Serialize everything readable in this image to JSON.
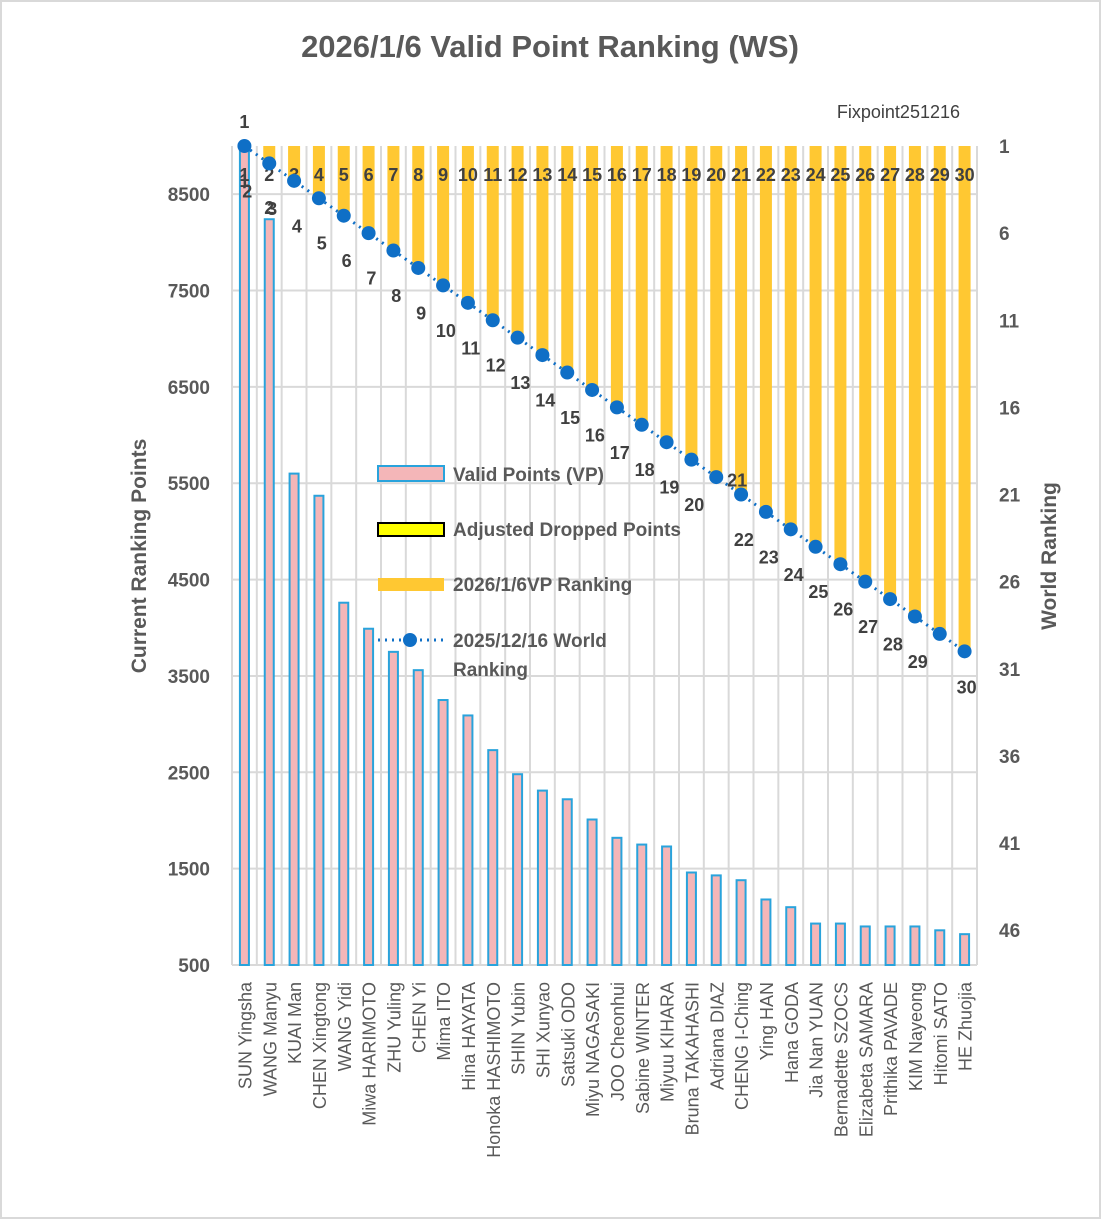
{
  "chart_data": {
    "type": "bar",
    "title": "2026/1/6  Valid Point Ranking (WS)",
    "subtitle": "Fixpoint251216",
    "ylabel": "Current Ranking Points",
    "y2label": "World Ranking",
    "ylim": [
      500,
      9000
    ],
    "yticks": [
      500,
      1500,
      2500,
      3500,
      4500,
      5500,
      6500,
      7500,
      8500
    ],
    "y2lim": [
      1,
      48
    ],
    "y2reversed": true,
    "y2ticks": [
      1,
      6,
      11,
      16,
      21,
      26,
      31,
      36,
      41,
      46
    ],
    "grid": true,
    "legend_position": "center-left",
    "categories": [
      "SUN Yingsha",
      "WANG Manyu",
      "KUAI Man",
      "CHEN Xingtong",
      "WANG Yidi",
      "Miwa HARIMOTO",
      "ZHU Yuling",
      "CHEN Yi",
      "Mima ITO",
      "Hina HAYATA",
      "Honoka HASHIMOTO",
      "SHIN Yubin",
      "SHI Xunyao",
      "Satsuki ODO",
      "Miyu NAGASAKI",
      "JOO Cheonhui",
      "Sabine WINTER",
      "Miyuu KIHARA",
      "Bruna TAKAHASHI",
      "Adriana DIAZ",
      "CHENG I-Ching",
      "Ying HAN",
      "Hana GODA",
      "Jia Nan YUAN",
      "Bernadette SZOCS",
      "Elizabeta SAMARA",
      "Prithika PAVADE",
      "KIM Nayeong",
      "Hitomi SATO",
      "HE Zhuojia"
    ],
    "series": [
      {
        "name": "Valid Points (VP)",
        "type": "bar",
        "axis": "left",
        "color": "#f4b6b8",
        "edge": "#29a3dc",
        "values": [
          9000,
          8240,
          5600,
          5370,
          4260,
          3990,
          3750,
          3560,
          3250,
          3090,
          2730,
          2480,
          2310,
          2220,
          2010,
          1820,
          1750,
          1730,
          1460,
          1430,
          1380,
          1180,
          1100,
          930,
          930,
          900,
          900,
          900,
          860,
          820
        ]
      },
      {
        "name": "Adjusted Dropped Points",
        "type": "bar",
        "axis": "left",
        "color": "#ffff00",
        "edge": "#000000",
        "values": []
      },
      {
        "name": "2026/1/6VP Ranking",
        "type": "bar",
        "axis": "right",
        "color": "#ffc832",
        "values": [
          1,
          2,
          3,
          4,
          5,
          6,
          7,
          8,
          9,
          10,
          11,
          12,
          13,
          14,
          15,
          16,
          17,
          18,
          19,
          20,
          21,
          22,
          23,
          24,
          25,
          26,
          27,
          28,
          29,
          30
        ]
      },
      {
        "name": "2025/12/16 World Ranking",
        "type": "line",
        "axis": "right",
        "color": "#0f6fc6",
        "values": [
          1,
          2,
          3,
          4,
          5,
          6,
          7,
          8,
          9,
          10,
          11,
          12,
          13,
          14,
          15,
          16,
          17,
          18,
          19,
          20,
          21,
          22,
          23,
          24,
          25,
          26,
          27,
          28,
          29,
          30
        ]
      }
    ]
  }
}
